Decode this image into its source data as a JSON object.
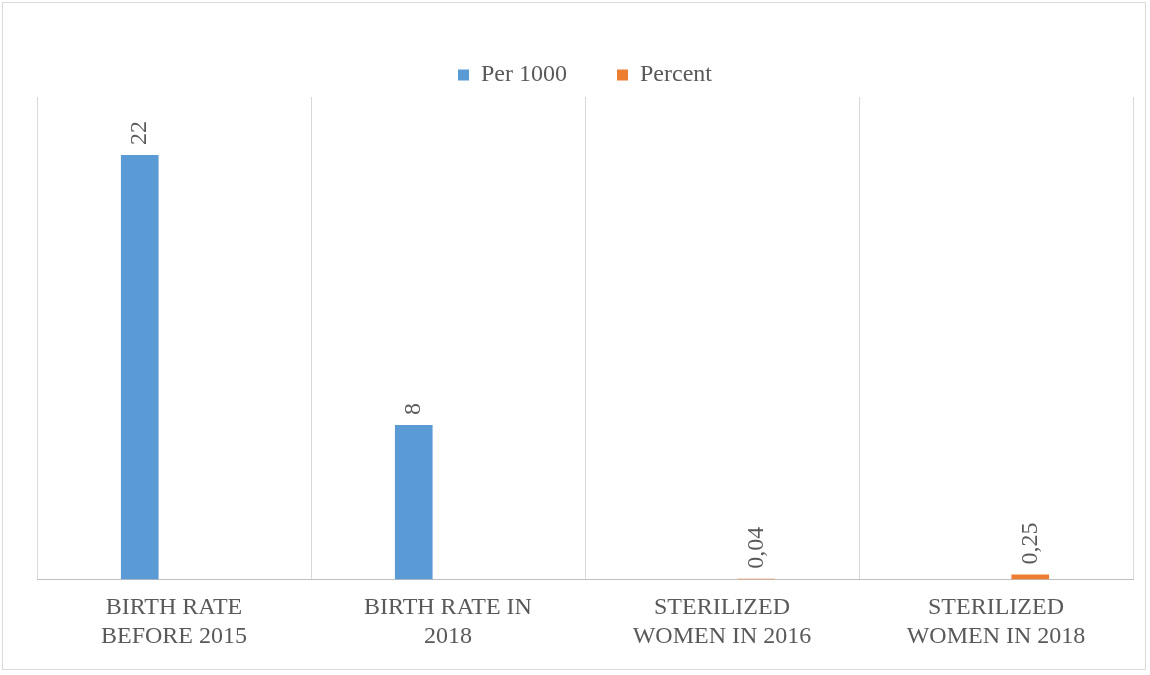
{
  "chart_data": {
    "type": "bar",
    "categories": [
      "BIRTH RATE BEFORE 2015",
      "BIRTH RATE IN 2018",
      "STERILIZED WOMEN IN 2016",
      "STERILIZED WOMEN IN 2018"
    ],
    "series": [
      {
        "name": "Per 1000",
        "color": "#5b9bd5",
        "values": [
          22,
          8,
          null,
          null
        ],
        "value_labels": [
          "22",
          "8",
          null,
          null
        ]
      },
      {
        "name": "Percent",
        "color": "#ed7d31",
        "values": [
          null,
          null,
          0.04,
          0.25
        ],
        "value_labels": [
          null,
          null,
          "0,04",
          "0,25"
        ]
      }
    ],
    "ylim": [
      0,
      25
    ],
    "grid": "x",
    "legend": "top"
  }
}
